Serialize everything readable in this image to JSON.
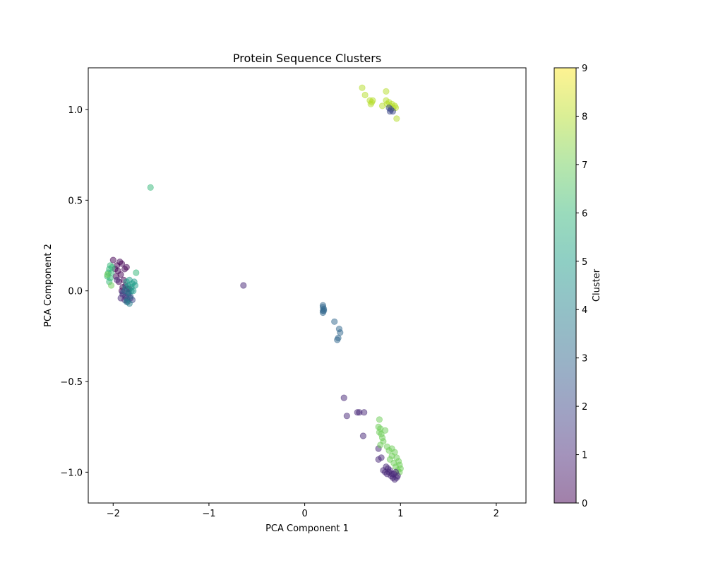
{
  "chart_data": {
    "type": "scatter",
    "title": "Protein Sequence Clusters",
    "xlabel": "PCA Component 1",
    "ylabel": "PCA Component 2",
    "xlim": [
      -2.26,
      2.31
    ],
    "ylim": [
      -1.17,
      1.23
    ],
    "xticks": [
      -2,
      -1,
      0,
      1,
      2
    ],
    "xtick_labels": [
      "−2",
      "−1",
      "0",
      "1",
      "2"
    ],
    "yticks": [
      -1.0,
      -0.5,
      0.0,
      0.5,
      1.0
    ],
    "ytick_labels": [
      "−1.0",
      "−0.5",
      "0.0",
      "0.5",
      "1.0"
    ],
    "grid": false,
    "point_alpha": 0.5,
    "colormap": "viridis",
    "colorbar": {
      "label": "Cluster",
      "range": [
        0,
        9
      ],
      "ticks": [
        0,
        1,
        2,
        3,
        4,
        5,
        6,
        7,
        8,
        9
      ],
      "tick_labels": [
        "0",
        "1",
        "2",
        "3",
        "4",
        "5",
        "6",
        "7",
        "8",
        "9"
      ],
      "colors": [
        "#440154",
        "#482878",
        "#3e4989",
        "#31688e",
        "#26828e",
        "#1f9e89",
        "#35b779",
        "#6ece58",
        "#b5de2b",
        "#fde725"
      ]
    },
    "points": [
      [
        -2.0,
        0.17,
        0
      ],
      [
        -1.96,
        0.14,
        0
      ],
      [
        -1.93,
        0.16,
        0
      ],
      [
        -1.91,
        0.15,
        0
      ],
      [
        -1.95,
        0.11,
        0
      ],
      [
        -1.98,
        0.12,
        0
      ],
      [
        -1.92,
        0.09,
        0
      ],
      [
        -1.89,
        0.06,
        0
      ],
      [
        -1.94,
        0.05,
        0
      ],
      [
        -1.87,
        0.03,
        0
      ],
      [
        -1.85,
        0.01,
        0
      ],
      [
        -1.9,
        0.02,
        0
      ],
      [
        -1.83,
        0.01,
        0
      ],
      [
        -1.88,
        0.12,
        0
      ],
      [
        -1.86,
        0.13,
        0
      ],
      [
        -1.97,
        0.08,
        0
      ],
      [
        -1.91,
        0.0,
        0
      ],
      [
        -1.84,
        -0.01,
        0
      ],
      [
        -1.96,
        0.06,
        1
      ],
      [
        -1.9,
        -0.02,
        1
      ],
      [
        -1.88,
        -0.05,
        1
      ],
      [
        -1.85,
        -0.06,
        1
      ],
      [
        -1.82,
        -0.04,
        1
      ],
      [
        -1.92,
        -0.04,
        1
      ],
      [
        -1.87,
        -0.03,
        1
      ],
      [
        -1.9,
        -0.01,
        2
      ],
      [
        -1.86,
        -0.04,
        2
      ],
      [
        -1.8,
        -0.05,
        2
      ],
      [
        -1.84,
        -0.02,
        2
      ],
      [
        -1.85,
        -0.05,
        3
      ],
      [
        -1.82,
        -0.03,
        3
      ],
      [
        -1.88,
        0.0,
        3
      ],
      [
        -1.87,
        0.02,
        4
      ],
      [
        -1.84,
        -0.01,
        4
      ],
      [
        -1.81,
        0.0,
        4
      ],
      [
        -1.83,
        -0.07,
        4
      ],
      [
        -1.86,
        -0.06,
        4
      ],
      [
        -1.86,
        0.05,
        5
      ],
      [
        -1.83,
        0.06,
        5
      ],
      [
        -1.8,
        0.04,
        5
      ],
      [
        -1.78,
        0.05,
        5
      ],
      [
        -1.81,
        0.02,
        5
      ],
      [
        -1.79,
        0.0,
        5
      ],
      [
        -1.84,
        0.03,
        5
      ],
      [
        -1.77,
        0.03,
        5
      ],
      [
        -2.03,
        0.14,
        6
      ],
      [
        -2.04,
        0.12,
        6
      ],
      [
        -2.05,
        0.1,
        6
      ],
      [
        -2.06,
        0.08,
        6
      ],
      [
        -2.02,
        0.1,
        6
      ],
      [
        -2.03,
        0.07,
        6
      ],
      [
        -2.01,
        0.13,
        6
      ],
      [
        -2.04,
        0.05,
        6
      ],
      [
        -1.76,
        0.1,
        6
      ],
      [
        -1.61,
        0.57,
        6
      ],
      [
        -2.02,
        0.03,
        7
      ],
      [
        -2.06,
        0.09,
        7
      ],
      [
        -0.64,
        0.03,
        1
      ],
      [
        0.19,
        -0.08,
        3
      ],
      [
        0.19,
        -0.09,
        3
      ],
      [
        0.2,
        -0.1,
        3
      ],
      [
        0.19,
        -0.11,
        3
      ],
      [
        0.2,
        -0.11,
        3
      ],
      [
        0.19,
        -0.12,
        3
      ],
      [
        0.31,
        -0.17,
        3
      ],
      [
        0.36,
        -0.21,
        3
      ],
      [
        0.37,
        -0.23,
        3
      ],
      [
        0.35,
        -0.26,
        3
      ],
      [
        0.34,
        -0.27,
        3
      ],
      [
        0.41,
        -0.59,
        1
      ],
      [
        0.44,
        -0.69,
        1
      ],
      [
        0.55,
        -0.67,
        1
      ],
      [
        0.57,
        -0.67,
        1
      ],
      [
        0.62,
        -0.67,
        1
      ],
      [
        0.61,
        -0.8,
        1
      ],
      [
        0.77,
        -0.87,
        1
      ],
      [
        0.8,
        -0.92,
        1
      ],
      [
        0.77,
        -0.93,
        1
      ],
      [
        0.78,
        -0.71,
        7
      ],
      [
        0.77,
        -0.75,
        7
      ],
      [
        0.79,
        -0.76,
        7
      ],
      [
        0.84,
        -0.77,
        7
      ],
      [
        0.78,
        -0.78,
        7
      ],
      [
        0.8,
        -0.79,
        7
      ],
      [
        0.81,
        -0.81,
        7
      ],
      [
        0.82,
        -0.83,
        7
      ],
      [
        0.79,
        -0.85,
        7
      ],
      [
        0.86,
        -0.86,
        7
      ],
      [
        0.88,
        -0.88,
        7
      ],
      [
        0.91,
        -0.87,
        7
      ],
      [
        0.94,
        -0.89,
        7
      ],
      [
        0.96,
        -0.92,
        7
      ],
      [
        0.98,
        -0.94,
        7
      ],
      [
        0.99,
        -0.96,
        7
      ],
      [
        1.0,
        -0.98,
        7
      ],
      [
        0.97,
        -0.99,
        7
      ],
      [
        0.93,
        -0.95,
        7
      ],
      [
        0.95,
        -0.97,
        7
      ],
      [
        0.89,
        -0.93,
        7
      ],
      [
        0.91,
        -0.91,
        7
      ],
      [
        0.99,
        -1.0,
        7
      ],
      [
        0.82,
        -0.99,
        1
      ],
      [
        0.84,
        -1.0,
        1
      ],
      [
        0.86,
        -1.01,
        1
      ],
      [
        0.88,
        -1.0,
        1
      ],
      [
        0.9,
        -1.02,
        1
      ],
      [
        0.92,
        -1.03,
        1
      ],
      [
        0.94,
        -1.04,
        1
      ],
      [
        0.96,
        -1.03,
        1
      ],
      [
        0.97,
        -1.02,
        1
      ],
      [
        0.93,
        -1.01,
        1
      ],
      [
        0.89,
        -0.99,
        1
      ],
      [
        0.85,
        -0.97,
        1
      ],
      [
        0.87,
        -0.98,
        1
      ],
      [
        0.95,
        -1.0,
        1
      ],
      [
        0.91,
        -1.01,
        1
      ],
      [
        0.6,
        1.12,
        8
      ],
      [
        0.63,
        1.08,
        8
      ],
      [
        0.85,
        1.1,
        8
      ],
      [
        0.68,
        1.05,
        8
      ],
      [
        0.7,
        1.04,
        8
      ],
      [
        0.71,
        1.05,
        8
      ],
      [
        0.69,
        1.03,
        8
      ],
      [
        0.81,
        1.02,
        8
      ],
      [
        0.85,
        1.05,
        8
      ],
      [
        0.88,
        1.04,
        8
      ],
      [
        0.91,
        1.03,
        8
      ],
      [
        0.94,
        1.02,
        8
      ],
      [
        0.95,
        1.01,
        8
      ],
      [
        0.92,
        1.01,
        8
      ],
      [
        0.89,
        1.02,
        8
      ],
      [
        0.86,
        1.03,
        8
      ],
      [
        0.96,
        0.95,
        8
      ],
      [
        0.88,
        1.01,
        2
      ],
      [
        0.9,
        1.0,
        2
      ],
      [
        0.92,
        0.99,
        2
      ],
      [
        0.89,
        0.99,
        2
      ]
    ]
  }
}
